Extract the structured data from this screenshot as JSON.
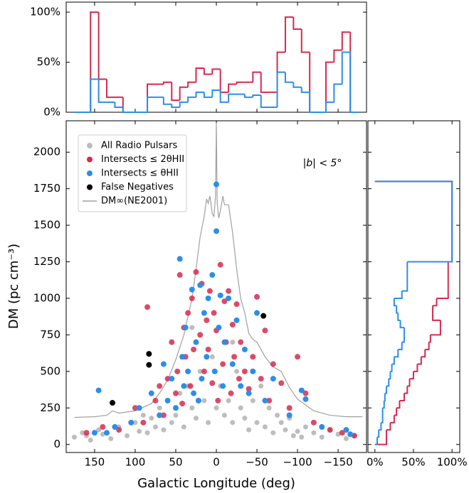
{
  "chart_data": [
    {
      "type": "scatter",
      "xlabel": "Galactic Longitude (deg)",
      "ylabel": "DM (pc cm⁻³)",
      "annotation": "|b| < 5°",
      "xlim": [
        185,
        -185
      ],
      "ylim": [
        -55,
        2215
      ],
      "xticks": [
        150,
        100,
        50,
        0,
        {
          "value": -50,
          "label": "−50"
        },
        {
          "value": -100,
          "label": "−100"
        },
        {
          "value": -150,
          "label": "−150"
        }
      ],
      "yticks": [
        0,
        250,
        500,
        750,
        1000,
        1250,
        1500,
        1750,
        2000
      ],
      "legend": "upper left",
      "series": [
        {
          "name": "All Radio Pulsars",
          "color": "#bdbdbd",
          "x": [
            175,
            165,
            160,
            155,
            145,
            140,
            130,
            120,
            110,
            100,
            95,
            90,
            85,
            80,
            75,
            70,
            65,
            60,
            55,
            50,
            45,
            40,
            35,
            30,
            25,
            20,
            15,
            10,
            5,
            0,
            -5,
            -10,
            -15,
            -20,
            -25,
            -30,
            -35,
            -40,
            -45,
            -50,
            -55,
            -60,
            -65,
            -70,
            -75,
            -80,
            -85,
            -90,
            -95,
            -100,
            -105,
            -110,
            -120,
            -130,
            -140,
            -150,
            -160,
            -170,
            30,
            -20
          ],
          "values": [
            50,
            80,
            60,
            30,
            100,
            70,
            40,
            120,
            60,
            150,
            90,
            200,
            80,
            180,
            120,
            250,
            100,
            300,
            150,
            200,
            350,
            120,
            400,
            250,
            180,
            500,
            300,
            150,
            600,
            250,
            400,
            200,
            300,
            150,
            500,
            250,
            180,
            100,
            300,
            150,
            400,
            120,
            250,
            80,
            200,
            150,
            100,
            180,
            60,
            90,
            50,
            120,
            80,
            50,
            100,
            70,
            40,
            60,
            800,
            700
          ]
        },
        {
          "name": "Intersects ≤ 2θHII",
          "color": "#d62a4e",
          "x": [
            160,
            140,
            120,
            100,
            90,
            85,
            75,
            70,
            65,
            60,
            55,
            50,
            48,
            45,
            42,
            40,
            38,
            35,
            32,
            30,
            28,
            25,
            22,
            20,
            18,
            15,
            12,
            10,
            8,
            5,
            3,
            0,
            -2,
            -5,
            -8,
            -10,
            -12,
            -15,
            -18,
            -20,
            -22,
            -25,
            -28,
            -30,
            -35,
            -40,
            -45,
            -50,
            -55,
            -60,
            -65,
            -70,
            -80,
            -90,
            -100,
            -110,
            -120,
            -140,
            -155,
            -170
          ],
          "values": [
            80,
            120,
            100,
            250,
            150,
            940,
            300,
            400,
            200,
            450,
            700,
            350,
            500,
            1160,
            280,
            800,
            600,
            900,
            400,
            1000,
            650,
            1180,
            300,
            750,
            1100,
            500,
            850,
            650,
            1050,
            420,
            900,
            780,
            300,
            1230,
            550,
            980,
            700,
            1050,
            350,
            820,
            600,
            960,
            450,
            700,
            500,
            380,
            600,
            1010,
            450,
            780,
            300,
            550,
            420,
            250,
            600,
            350,
            150,
            100,
            80,
            60
          ]
        },
        {
          "name": "Intersects ≤ θHII",
          "color": "#2c8ee8",
          "x": [
            150,
            145,
            135,
            125,
            105,
            95,
            80,
            70,
            65,
            60,
            55,
            50,
            45,
            42,
            40,
            38,
            35,
            30,
            28,
            25,
            22,
            20,
            18,
            15,
            12,
            10,
            5,
            2,
            0,
            0,
            -3,
            -5,
            -8,
            -10,
            -15,
            -20,
            -25,
            -30,
            -35,
            -40,
            -45,
            -50,
            -60,
            -70,
            -90,
            -105,
            -110,
            -130,
            -160,
            -165
          ],
          "values": [
            80,
            370,
            80,
            120,
            150,
            250,
            350,
            200,
            550,
            300,
            450,
            250,
            1270,
            600,
            400,
            800,
            500,
            1060,
            350,
            700,
            300,
            1090,
            450,
            900,
            600,
            1000,
            1160,
            500,
            1780,
            1460,
            800,
            1020,
            400,
            700,
            1000,
            550,
            850,
            400,
            650,
            350,
            500,
            900,
            300,
            450,
            200,
            370,
            310,
            120,
            100,
            70
          ]
        },
        {
          "name": "False Negatives",
          "color": "#000000",
          "x": [
            128,
            83,
            83,
            -58
          ],
          "values": [
            285,
            620,
            545,
            880
          ]
        }
      ],
      "line": {
        "name": "DM∞(NE2001)",
        "color": "#a0a0a0",
        "x": [
          175,
          150,
          135,
          128,
          120,
          100,
          80,
          70,
          60,
          50,
          40,
          30,
          25,
          20,
          15,
          12,
          10,
          8,
          5,
          3,
          1,
          0,
          -1,
          -3,
          -5,
          -8,
          -10,
          -15,
          -20,
          -25,
          -30,
          -35,
          -40,
          -45,
          -50,
          -55,
          -60,
          -70,
          -80,
          -90,
          -100,
          -110,
          -120,
          -140,
          -160,
          -180
        ],
        "values": [
          185,
          190,
          200,
          230,
          215,
          230,
          280,
          350,
          440,
          580,
          750,
          1000,
          1200,
          1420,
          1560,
          1680,
          1650,
          1700,
          1580,
          1560,
          1700,
          2200,
          1650,
          1550,
          1600,
          1700,
          1640,
          1640,
          1450,
          1200,
          1000,
          900,
          760,
          720,
          700,
          650,
          600,
          530,
          500,
          390,
          310,
          270,
          230,
          200,
          190,
          190
        ]
      }
    },
    {
      "type": "histogram",
      "xlim": [
        185,
        -185
      ],
      "ylim": [
        0,
        110
      ],
      "yticks": [
        {
          "value": 0,
          "label": "0%"
        },
        {
          "value": 50,
          "label": "50%"
        },
        {
          "value": 100,
          "label": "100%"
        }
      ],
      "bins": [
        175,
        165,
        155,
        145,
        135,
        125,
        115,
        105,
        95,
        85,
        75,
        65,
        55,
        45,
        35,
        25,
        15,
        5,
        -5,
        -15,
        -25,
        -35,
        -45,
        -55,
        -65,
        -75,
        -85,
        -95,
        -105,
        -115,
        -125,
        -135,
        -145,
        -155,
        -165,
        -175
      ],
      "series": [
        {
          "color": "#d62a4e",
          "values": [
            0,
            0,
            100,
            33,
            15,
            15,
            0,
            0,
            0,
            28,
            28,
            30,
            12,
            25,
            30,
            44,
            38,
            43,
            20,
            28,
            30,
            30,
            40,
            20,
            20,
            60,
            95,
            83,
            60,
            0,
            0,
            50,
            62,
            80,
            0
          ]
        },
        {
          "color": "#2c8ee8",
          "values": [
            0,
            0,
            33,
            10,
            10,
            5,
            0,
            0,
            0,
            15,
            15,
            8,
            5,
            10,
            15,
            20,
            15,
            22,
            10,
            18,
            18,
            15,
            17,
            5,
            5,
            40,
            30,
            25,
            20,
            0,
            0,
            10,
            28,
            60,
            0
          ]
        }
      ]
    },
    {
      "type": "histogram",
      "orientation": "horizontal",
      "xlim": [
        -9,
        110
      ],
      "xticks": [
        {
          "value": 0,
          "label": "0%"
        },
        {
          "value": 50,
          "label": "50%"
        },
        {
          "value": 100,
          "label": "100%"
        }
      ],
      "bins": [
        0,
        50,
        100,
        150,
        200,
        250,
        300,
        350,
        400,
        450,
        500,
        550,
        600,
        650,
        700,
        750,
        800,
        850,
        900,
        950,
        1000,
        1050,
        1100,
        1150,
        1200,
        1250,
        1300,
        1350,
        1400,
        1450,
        1500,
        1550,
        1600,
        1650,
        1700,
        1750,
        1800
      ],
      "series": [
        {
          "color": "#d62a4e",
          "values": [
            15,
            15,
            20,
            25,
            28,
            32,
            38,
            42,
            45,
            50,
            55,
            60,
            65,
            70,
            72,
            85,
            85,
            75,
            75,
            80,
            95,
            95,
            95,
            95,
            95,
            100,
            100,
            100,
            100,
            100,
            100,
            100,
            100,
            100,
            100,
            100
          ]
        },
        {
          "color": "#2c8ee8",
          "values": [
            3,
            5,
            8,
            10,
            10,
            12,
            13,
            15,
            18,
            20,
            22,
            25,
            30,
            35,
            38,
            38,
            33,
            30,
            28,
            25,
            35,
            42,
            42,
            42,
            42,
            100,
            100,
            100,
            100,
            100,
            100,
            100,
            100,
            100,
            100,
            100
          ]
        }
      ]
    }
  ]
}
